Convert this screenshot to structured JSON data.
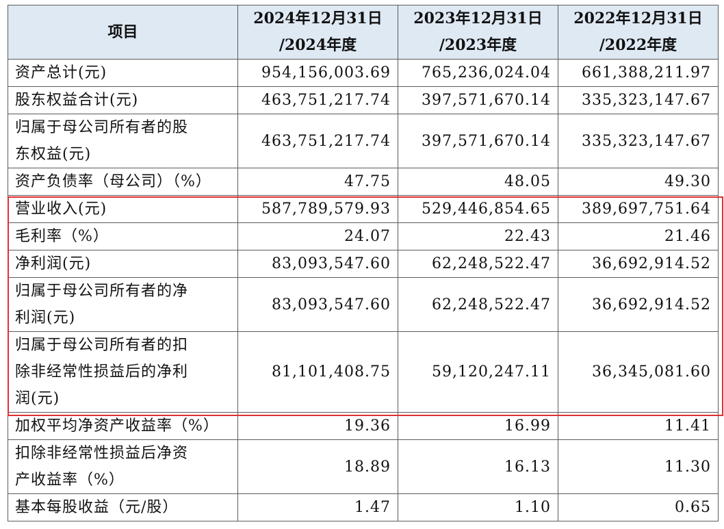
{
  "headers": {
    "item": "项目",
    "col1_line1": "2024年12月31日",
    "col1_line2": "/2024年度",
    "col2_line1": "2023年12月31日",
    "col2_line2": "/2023年度",
    "col3_line1": "2022年12月31日",
    "col3_line2": "/2022年度"
  },
  "rows": [
    {
      "label": [
        "资产总计(元)"
      ],
      "v2024": "954,156,003.69",
      "v2023": "765,236,024.04",
      "v2022": "661,388,211.97"
    },
    {
      "label": [
        "股东权益合计(元)"
      ],
      "v2024": "463,751,217.74",
      "v2023": "397,571,670.14",
      "v2022": "335,323,147.67"
    },
    {
      "label": [
        "归属于母公司所有者的股",
        "东权益(元)"
      ],
      "v2024": "463,751,217.74",
      "v2023": "397,571,670.14",
      "v2022": "335,323,147.67"
    },
    {
      "label": [
        "资产负债率（母公司）（%）"
      ],
      "v2024": "47.75",
      "v2023": "48.05",
      "v2022": "49.30"
    },
    {
      "label": [
        "营业收入(元)"
      ],
      "v2024": "587,789,579.93",
      "v2023": "529,446,854.65",
      "v2022": "389,697,751.64"
    },
    {
      "label": [
        "毛利率（%）"
      ],
      "v2024": "24.07",
      "v2023": "22.43",
      "v2022": "21.46"
    },
    {
      "label": [
        "净利润(元)"
      ],
      "v2024": "83,093,547.60",
      "v2023": "62,248,522.47",
      "v2022": "36,692,914.52"
    },
    {
      "label": [
        "归属于母公司所有者的净",
        "利润(元)"
      ],
      "v2024": "83,093,547.60",
      "v2023": "62,248,522.47",
      "v2022": "36,692,914.52"
    },
    {
      "label": [
        "归属于母公司所有者的扣",
        "除非经常性损益后的净利",
        "润(元)"
      ],
      "v2024": "81,101,408.75",
      "v2023": "59,120,247.11",
      "v2022": "36,345,081.60"
    },
    {
      "label": [
        "加权平均净资产收益率（%）"
      ],
      "v2024": "19.36",
      "v2023": "16.99",
      "v2022": "11.41"
    },
    {
      "label": [
        "扣除非经常性损益后净资",
        "产收益率（%）"
      ],
      "v2024": "18.89",
      "v2023": "16.13",
      "v2022": "11.30"
    },
    {
      "label": [
        "基本每股收益（元/股）"
      ],
      "v2024": "1.47",
      "v2023": "1.10",
      "v2022": "0.65"
    }
  ],
  "highlight_color": "#e0302f",
  "header_bg": "#dfe9f4"
}
